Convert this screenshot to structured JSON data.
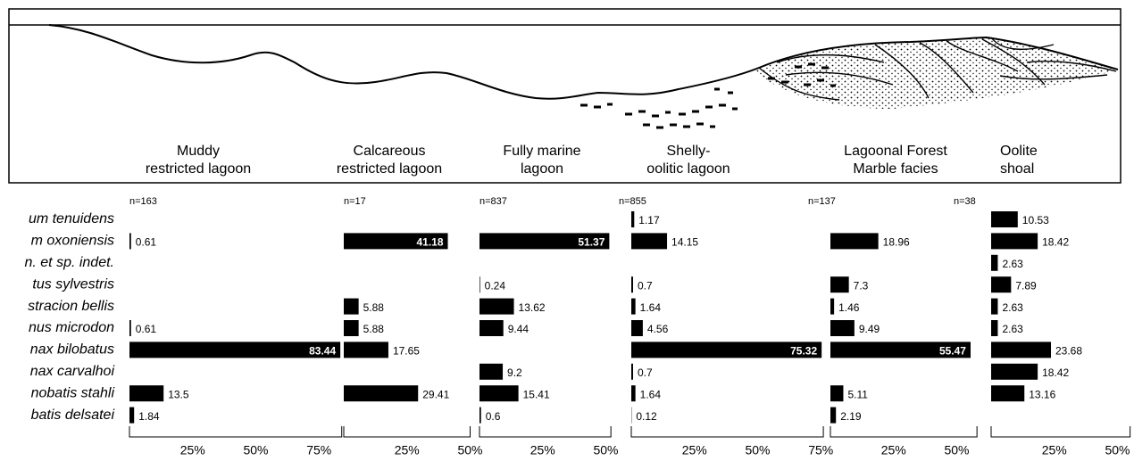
{
  "chart_data": {
    "type": "bar",
    "orientation": "horizontal",
    "color": "#000000",
    "categories": [
      "um tenuidens",
      "m oxoniensis",
      "n. et sp. indet.",
      "tus sylvestris",
      "stracion bellis",
      "nus microdon",
      "nax bilobatus",
      "nax carvalhoi",
      "nobatis stahli",
      "batis delsatei"
    ],
    "panels": [
      {
        "title_lines": [
          "Muddy",
          "restricted lagoon"
        ],
        "n_label": "n=163",
        "xlim": [
          0,
          84
        ],
        "xticks": [
          {
            "value": 25,
            "label": "25%"
          },
          {
            "value": 50,
            "label": "50%"
          },
          {
            "value": 75,
            "label": "75%"
          }
        ],
        "values": [
          null,
          0.61,
          null,
          null,
          null,
          0.61,
          83.44,
          null,
          13.5,
          1.84
        ]
      },
      {
        "title_lines": [
          "Calcareous",
          "restricted lagoon"
        ],
        "n_label": "n=17",
        "xlim": [
          0,
          50
        ],
        "xticks": [
          {
            "value": 25,
            "label": "25%"
          },
          {
            "value": 50,
            "label": "50%"
          }
        ],
        "values": [
          null,
          41.18,
          null,
          null,
          5.88,
          5.88,
          17.65,
          null,
          29.41,
          null
        ]
      },
      {
        "title_lines": [
          "Fully marine",
          "lagoon"
        ],
        "n_label": "n=837",
        "xlim": [
          0,
          52
        ],
        "xticks": [
          {
            "value": 25,
            "label": "25%"
          },
          {
            "value": 50,
            "label": "50%"
          }
        ],
        "values": [
          null,
          51.37,
          null,
          0.24,
          13.62,
          9.44,
          null,
          9.2,
          15.41,
          0.6
        ]
      },
      {
        "title_lines": [
          "Shelly-",
          "oolitic lagoon"
        ],
        "n_label": "n=855",
        "xlim": [
          0,
          76
        ],
        "xticks": [
          {
            "value": 25,
            "label": "25%"
          },
          {
            "value": 50,
            "label": "50%"
          },
          {
            "value": 75,
            "label": "75%"
          }
        ],
        "values": [
          1.17,
          14.15,
          null,
          0.7,
          1.64,
          4.56,
          75.32,
          0.7,
          1.64,
          0.12
        ]
      },
      {
        "title_lines": [
          "Lagoonal Forest",
          "Marble facies"
        ],
        "n_label": "n=137",
        "xlim": [
          0,
          58
        ],
        "xticks": [
          {
            "value": 25,
            "label": "25%"
          },
          {
            "value": 50,
            "label": "50%"
          }
        ],
        "values": [
          null,
          18.96,
          null,
          7.3,
          1.46,
          9.49,
          55.47,
          null,
          5.11,
          2.19
        ]
      },
      {
        "title_lines": [
          "Oolite",
          "shoal"
        ],
        "n_label": "n=38",
        "xlim": [
          0,
          55
        ],
        "xticks": [
          {
            "value": 25,
            "label": "25%"
          },
          {
            "value": 50,
            "label": "50%"
          }
        ],
        "values": [
          10.53,
          18.42,
          2.63,
          7.89,
          2.63,
          2.63,
          23.68,
          18.42,
          13.16,
          null
        ]
      }
    ]
  }
}
